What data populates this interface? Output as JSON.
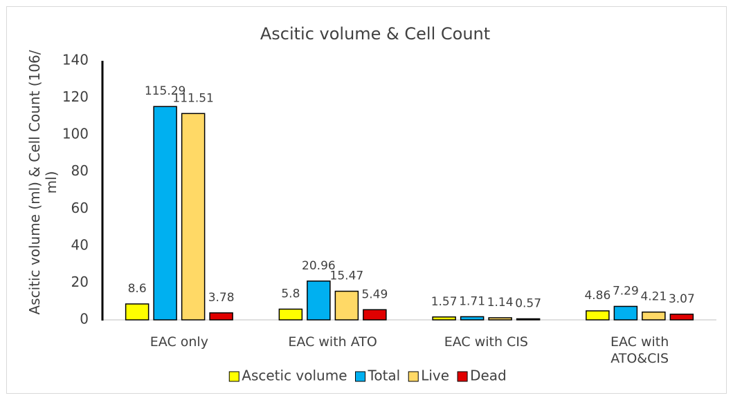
{
  "chart_data": {
    "type": "bar",
    "title": "Ascitic volume & Cell Count",
    "y_label": "Ascitic volume (ml) & Cell Count (106/ ml)",
    "categories": [
      "EAC only",
      "EAC with ATO",
      "EAC with CIS",
      "EAC with ATO&CIS"
    ],
    "series": [
      {
        "name": "Ascetic volume",
        "color": "#ffff00",
        "values": [
          8.6,
          5.8,
          1.57,
          4.86
        ]
      },
      {
        "name": "Total",
        "color": "#00b0f0",
        "values": [
          115.29,
          20.96,
          1.71,
          7.29
        ]
      },
      {
        "name": "Live",
        "color": "#ffd966",
        "values": [
          111.51,
          15.47,
          1.14,
          4.21
        ]
      },
      {
        "name": "Dead",
        "color": "#e00000",
        "values": [
          3.78,
          5.49,
          0.57,
          3.07
        ]
      }
    ],
    "ylim": [
      0,
      140
    ],
    "yticks": [
      0,
      20,
      40,
      60,
      80,
      100,
      120,
      140
    ],
    "grid": false,
    "legend": "bottom"
  }
}
